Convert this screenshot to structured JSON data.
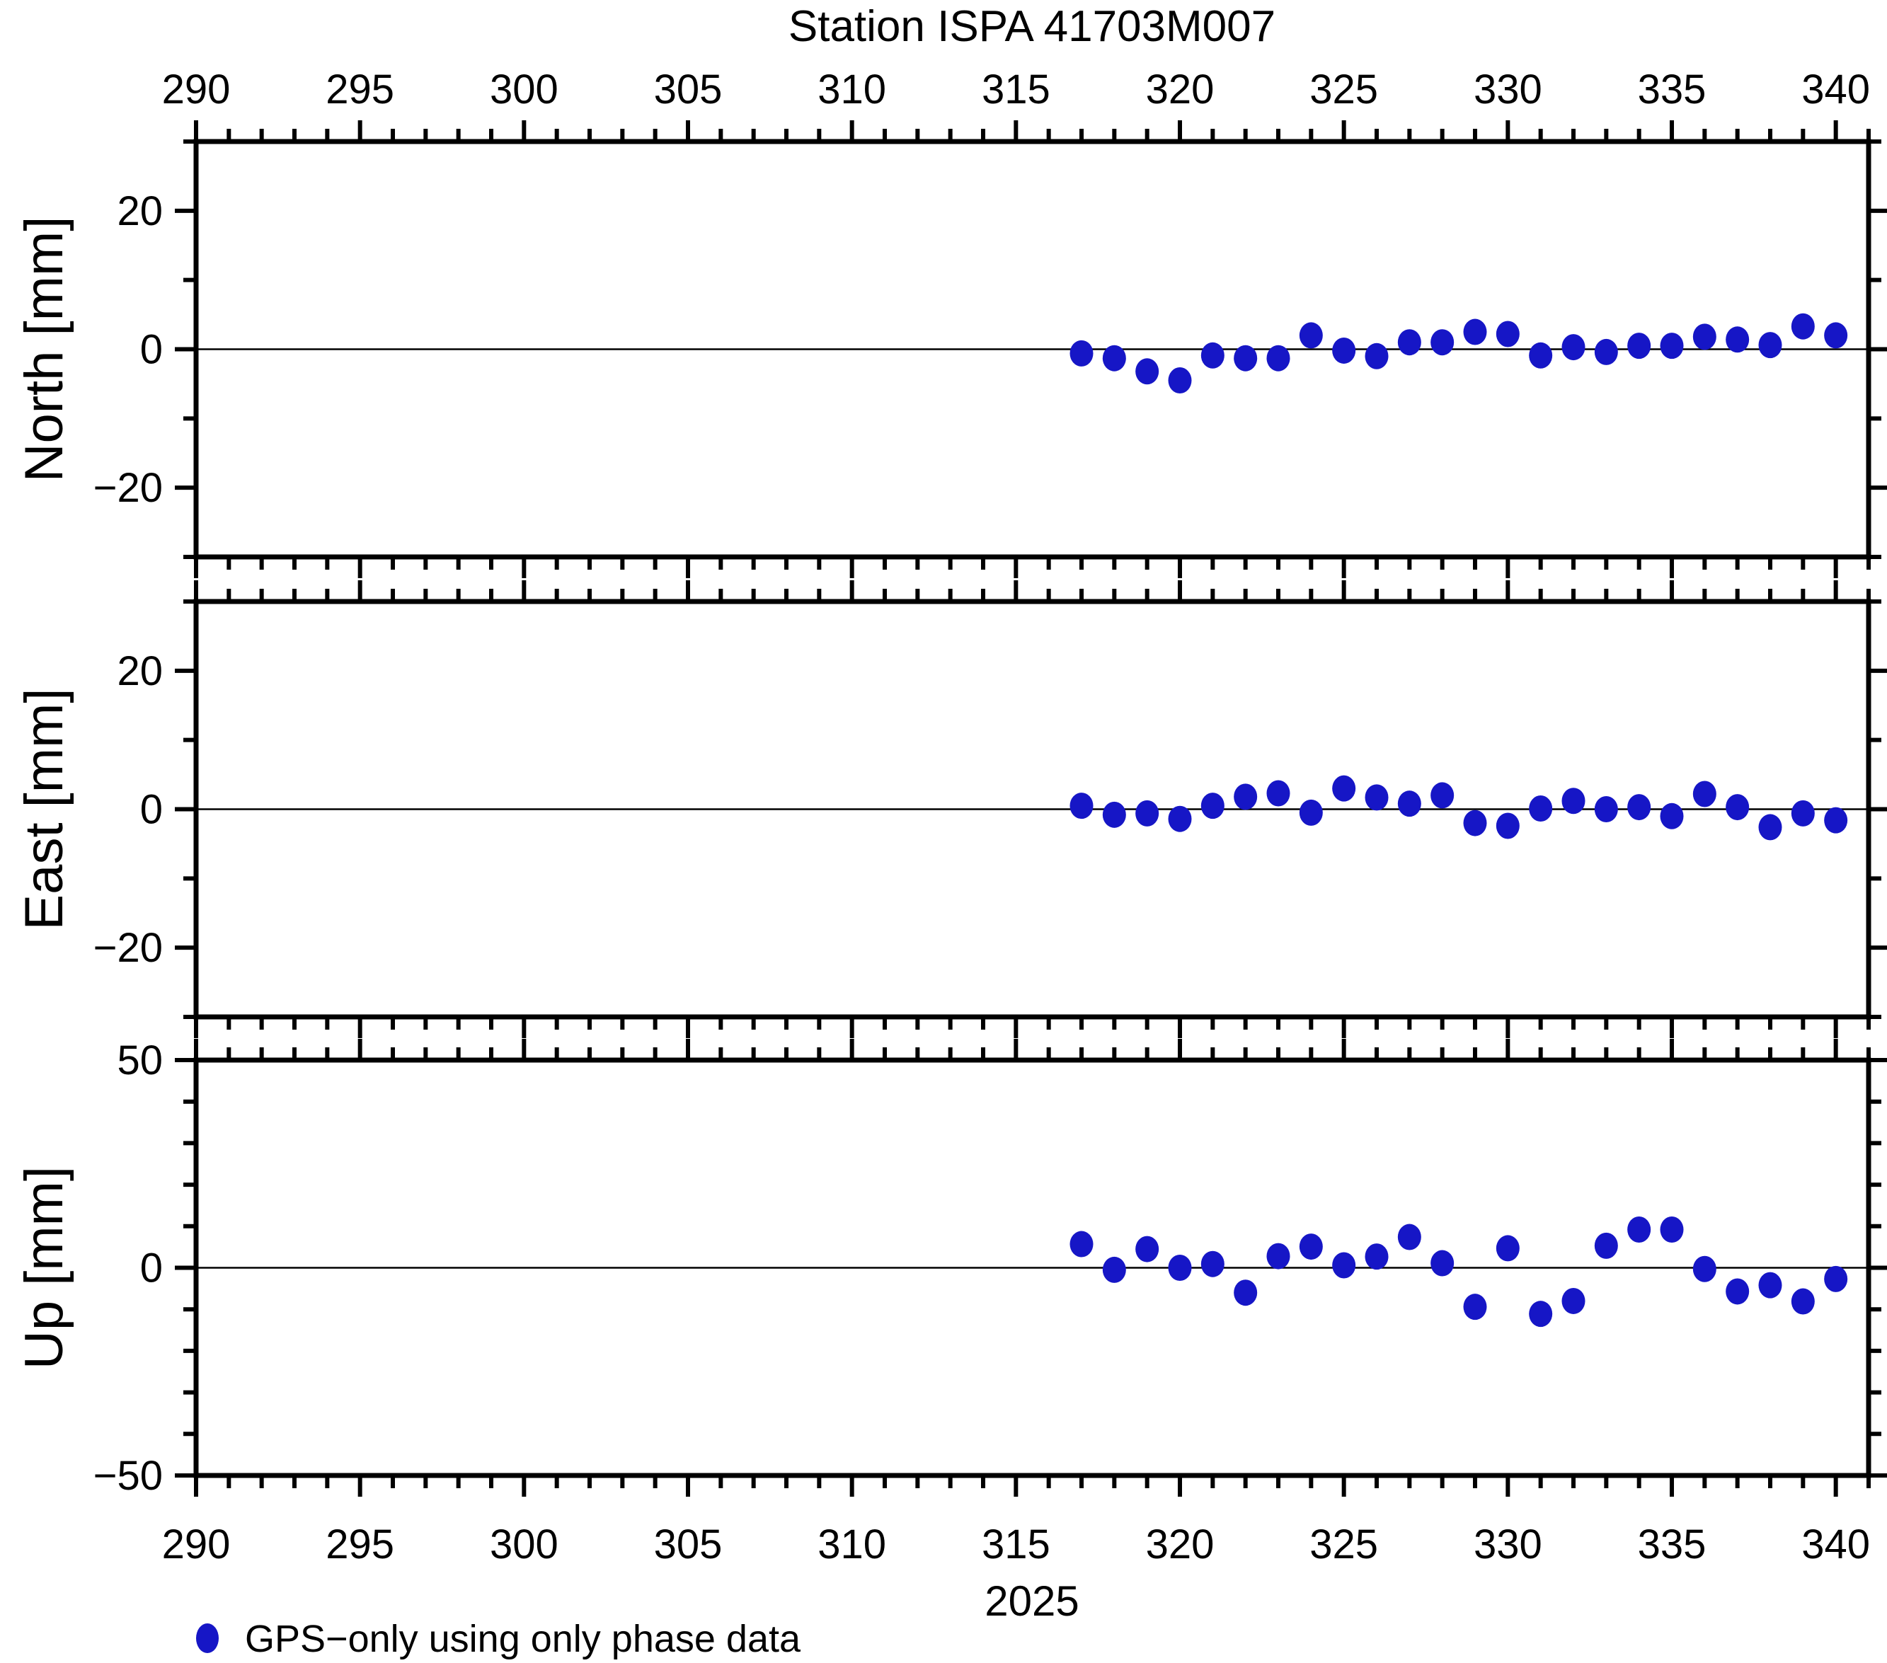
{
  "title": "Station ISPA 41703M007",
  "colors": {
    "marker": "#1616c6",
    "frame": "#000000",
    "zero_line": "#000000",
    "background": "#ffffff",
    "text": "#000000"
  },
  "legend": {
    "label": "GPS−only using only phase data",
    "marker_color": "#1616c6"
  },
  "x_axis": {
    "label": "2025",
    "ticks": [
      290,
      295,
      300,
      305,
      310,
      315,
      320,
      325,
      330,
      335,
      340
    ],
    "minor_step": 1,
    "xlim": [
      290,
      341
    ]
  },
  "chart_data": [
    {
      "type": "scatter",
      "panel": "north",
      "ylabel": "North [mm]",
      "ylim": [
        -30,
        30
      ],
      "yticks": [
        20,
        0,
        -20
      ],
      "minor_y_step": 10,
      "zero_line": true,
      "x": [
        317,
        318,
        319,
        320,
        321,
        322,
        323,
        324,
        325,
        326,
        327,
        328,
        329,
        330,
        331,
        332,
        333,
        334,
        335,
        336,
        337,
        338,
        339,
        340
      ],
      "y": [
        -0.6,
        -1.3,
        -3.2,
        -4.5,
        -0.9,
        -1.3,
        -1.3,
        2.0,
        -0.2,
        -1.0,
        1.0,
        1.0,
        2.5,
        2.2,
        -0.9,
        0.3,
        -0.4,
        0.5,
        0.5,
        1.8,
        1.4,
        0.6,
        3.3,
        2.0
      ]
    },
    {
      "type": "scatter",
      "panel": "east",
      "ylabel": "East [mm]",
      "ylim": [
        -30,
        30
      ],
      "yticks": [
        20,
        0,
        -20
      ],
      "minor_y_step": 10,
      "zero_line": true,
      "x": [
        317,
        318,
        319,
        320,
        321,
        322,
        323,
        324,
        325,
        326,
        327,
        328,
        329,
        330,
        331,
        332,
        333,
        334,
        335,
        336,
        337,
        338,
        339,
        340
      ],
      "y": [
        0.5,
        -0.8,
        -0.6,
        -1.4,
        0.5,
        1.8,
        2.3,
        -0.5,
        3.0,
        1.7,
        0.8,
        2.0,
        -2.0,
        -2.4,
        0.1,
        1.2,
        0.0,
        0.3,
        -1.0,
        2.2,
        0.3,
        -2.6,
        -0.6,
        -1.6
      ]
    },
    {
      "type": "scatter",
      "panel": "up",
      "ylabel": "Up [mm]",
      "ylim": [
        -50,
        50
      ],
      "yticks": [
        50,
        0,
        -50
      ],
      "minor_y_step": 10,
      "zero_line": true,
      "x": [
        317,
        318,
        319,
        320,
        321,
        322,
        323,
        324,
        325,
        326,
        327,
        328,
        329,
        330,
        331,
        332,
        333,
        334,
        335,
        336,
        337,
        338,
        339,
        340
      ],
      "y": [
        5.7,
        -0.5,
        4.5,
        0.0,
        0.9,
        -6.0,
        2.8,
        5.1,
        0.6,
        2.7,
        7.4,
        1.1,
        -9.4,
        4.7,
        -11.1,
        -8.0,
        5.3,
        9.2,
        9.2,
        -0.3,
        -5.7,
        -4.2,
        -8.1,
        -2.7
      ]
    }
  ]
}
